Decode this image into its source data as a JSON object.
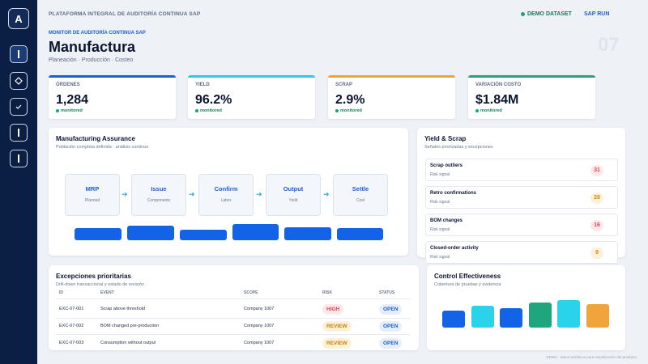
{
  "rail": {
    "logo": "A"
  },
  "header": {
    "platform": "PLATAFORMA INTEGRAL DE AUDITORÍA CONTINUA SAP",
    "dataset": "DEMO DATASET",
    "run": "SAP RUN"
  },
  "page": {
    "eyebrow": "MONITOR DE AUDITORÍA CONTINUA SAP",
    "title": "Manufactura",
    "subtitle": "Planeación · Producción · Costeo",
    "number": "07"
  },
  "kpis": [
    {
      "label": "ÓRDENES",
      "value": "1,284",
      "status": "monitored",
      "color": "#1d5fd6"
    },
    {
      "label": "YIELD",
      "value": "96.2%",
      "status": "monitored",
      "color": "#33c9dc"
    },
    {
      "label": "SCRAP",
      "value": "2.9%",
      "status": "monitored",
      "color": "#f0a43b"
    },
    {
      "label": "VARIACIÓN COSTO",
      "value": "$1.84M",
      "status": "monitored",
      "color": "#1fa67f"
    }
  ],
  "assurance": {
    "title": "Manufacturing Assurance",
    "subtitle": "Población completa definida · análisis continuo",
    "steps": [
      {
        "name": "MRP",
        "desc": "Planned"
      },
      {
        "name": "Issue",
        "desc": "Components"
      },
      {
        "name": "Confirm",
        "desc": "Labor"
      },
      {
        "name": "Output",
        "desc": "Yield"
      },
      {
        "name": "Settle",
        "desc": "Cost"
      }
    ],
    "arrow": "➔"
  },
  "yield_scrap": {
    "title": "Yield & Scrap",
    "subtitle": "Señales priorizadas y excepciones",
    "items": [
      {
        "name": "Scrap outliers",
        "sub": "Risk signal",
        "count": "31",
        "color": "#e0445a",
        "bg": "#fde8eb"
      },
      {
        "name": "Retro confirmations",
        "sub": "Risk signal",
        "count": "28",
        "color": "#d98a0f",
        "bg": "#fdf1da"
      },
      {
        "name": "BOM changes",
        "sub": "Risk signal",
        "count": "16",
        "color": "#e0445a",
        "bg": "#fde8eb"
      },
      {
        "name": "Closed-order activity",
        "sub": "Risk signal",
        "count": "9",
        "color": "#d98a0f",
        "bg": "#fdf1da"
      }
    ]
  },
  "exceptions": {
    "title": "Excepciones prioritarias",
    "subtitle": "Drill-down transaccional y estado de revisión",
    "columns": [
      "ID",
      "EVENT",
      "SCOPE",
      "RISK",
      "STATUS"
    ],
    "rows": [
      {
        "id": "EXC-07-001",
        "event": "Scrap above threshold",
        "scope": "Company 1007",
        "risk": "HIGH",
        "status": "OPEN"
      },
      {
        "id": "EXC-07-002",
        "event": "BOM changed pre-production",
        "scope": "Company 1007",
        "risk": "REVIEW",
        "status": "OPEN"
      },
      {
        "id": "EXC-07-003",
        "event": "Consumption without output",
        "scope": "Company 1007",
        "risk": "REVIEW",
        "status": "OPEN"
      }
    ],
    "risk_colors": {
      "HIGH": {
        "fg": "#e0445a",
        "bg": "#fde8eb"
      },
      "REVIEW": {
        "fg": "#c7800b",
        "bg": "#fdf1da"
      }
    },
    "status_colors": {
      "OPEN": {
        "fg": "#1d5fd6",
        "bg": "#e6eefc"
      }
    }
  },
  "control": {
    "title": "Control Effectiveness",
    "subtitle": "Cobertura de pruebas y evidencia",
    "bars": [
      {
        "level": 0.62,
        "color": "#1363e8"
      },
      {
        "level": 0.8,
        "color": "#2bd3ea"
      },
      {
        "level": 0.7,
        "color": "#1363e8"
      },
      {
        "level": 0.9,
        "color": "#1fa67f"
      },
      {
        "level": 1.0,
        "color": "#2bd3ea"
      },
      {
        "level": 0.85,
        "color": "#f0a43b"
      }
    ]
  },
  "footer": "DEMO · datos sintéticos para visualización del producto"
}
